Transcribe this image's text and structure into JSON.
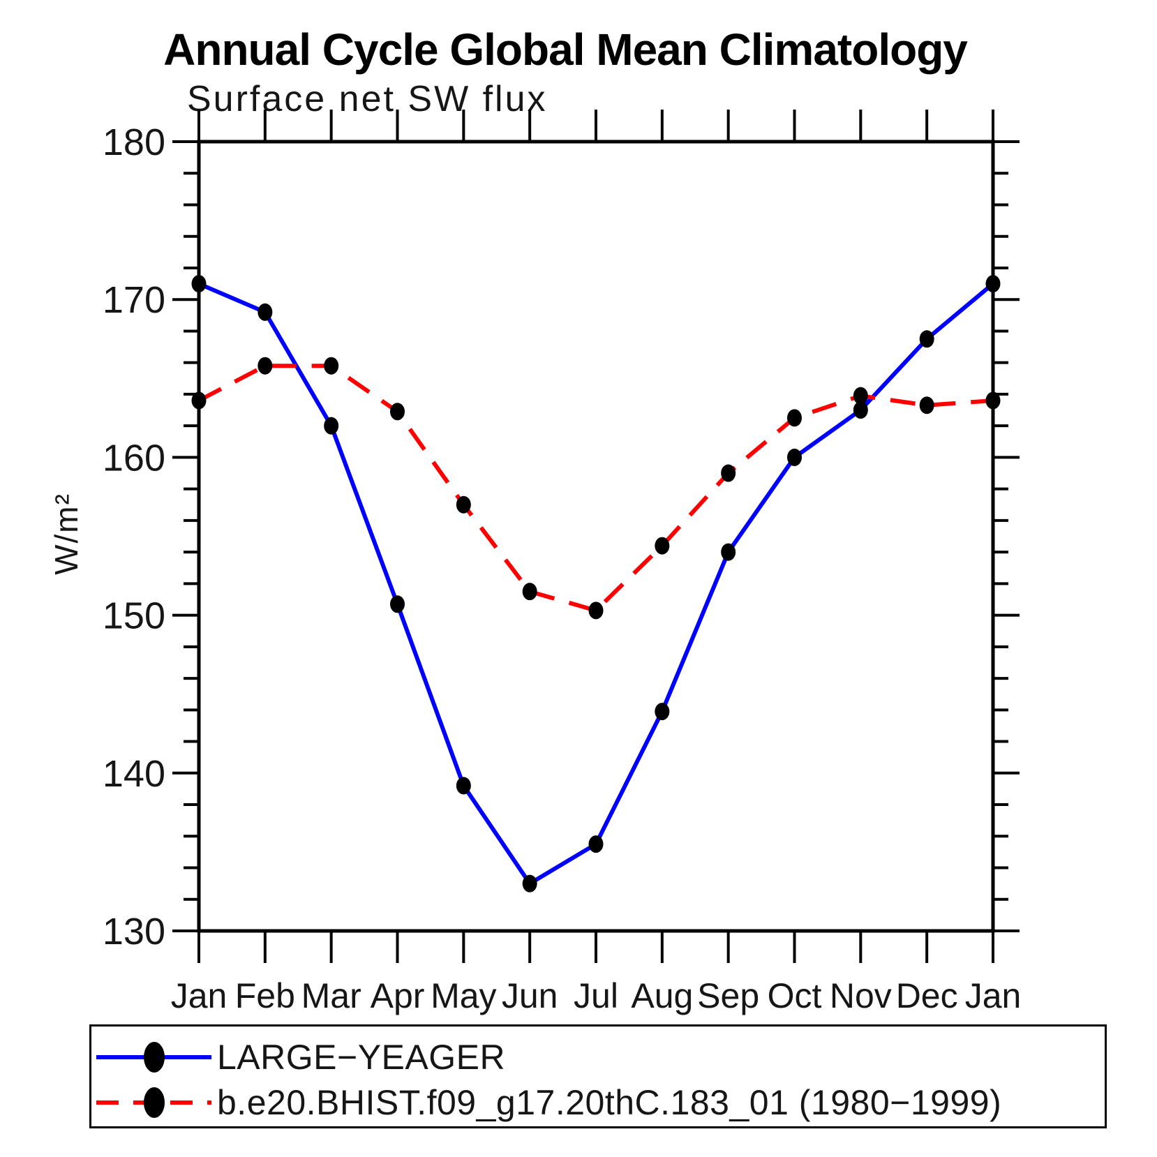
{
  "title": "Annual Cycle Global Mean Climatology",
  "subtitle": "Surface net SW flux",
  "ylabel": "W/m²",
  "chart_data": {
    "type": "line",
    "categories": [
      "Jan",
      "Feb",
      "Mar",
      "Apr",
      "May",
      "Jun",
      "Jul",
      "Aug",
      "Sep",
      "Oct",
      "Nov",
      "Dec",
      "Jan"
    ],
    "series": [
      {
        "name": "LARGE−YEAGER",
        "color": "#0000ff",
        "style": "solid",
        "values": [
          171.0,
          169.2,
          162.0,
          150.7,
          139.2,
          133.0,
          135.5,
          143.9,
          154.0,
          160.0,
          163.0,
          167.5,
          171.0
        ]
      },
      {
        "name": "b.e20.BHIST.f09_g17.20thC.183_01 (1980−1999)",
        "color": "#ff0000",
        "style": "dashed",
        "values": [
          163.6,
          165.8,
          165.8,
          162.9,
          157.0,
          151.5,
          150.3,
          154.4,
          159.0,
          162.5,
          163.9,
          163.3,
          163.6
        ]
      }
    ],
    "ylabel": "W/m²",
    "ylim": [
      130,
      180
    ],
    "yticks_major": [
      130,
      140,
      150,
      160,
      170,
      180
    ],
    "ytick_minor_step": 2,
    "marker_color": "#000000",
    "grid": "off",
    "legend_position": "bottom"
  }
}
